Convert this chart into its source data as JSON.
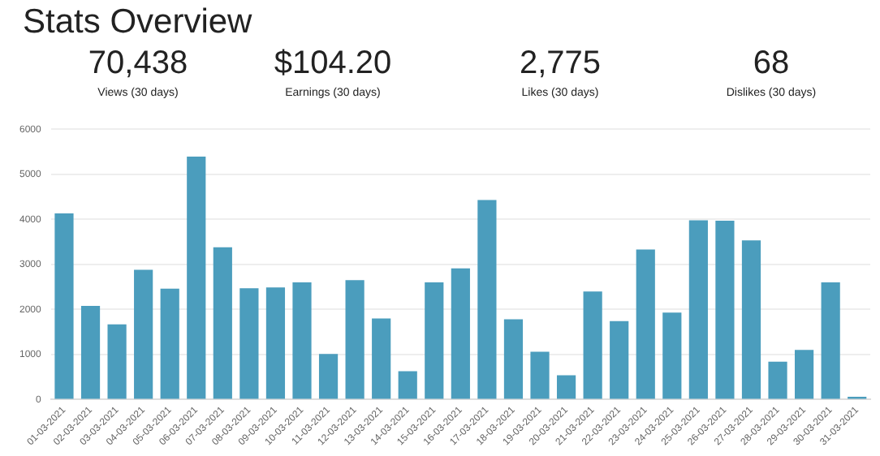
{
  "chart_data": {
    "type": "bar",
    "title": "Stats Overview",
    "annotations": [
      "70,438",
      "Views (30 days)",
      "$104.20",
      "Earnings (30 days)",
      "2,775",
      "Likes (30 days)",
      "68",
      "Dislikes (30 days)"
    ],
    "categories": [
      "01-03-2021",
      "02-03-2021",
      "03-03-2021",
      "04-03-2021",
      "05-03-2021",
      "06-03-2021",
      "07-03-2021",
      "08-03-2021",
      "09-03-2021",
      "10-03-2021",
      "11-03-2021",
      "12-03-2021",
      "13-03-2021",
      "14-03-2021",
      "15-03-2021",
      "16-03-2021",
      "17-03-2021",
      "18-03-2021",
      "19-03-2021",
      "20-03-2021",
      "21-03-2021",
      "22-03-2021",
      "23-03-2021",
      "24-03-2021",
      "25-03-2021",
      "26-03-2021",
      "27-03-2021",
      "28-03-2021",
      "29-03-2021",
      "30-03-2021",
      "31-03-2021"
    ],
    "values": [
      4130,
      2080,
      1670,
      2880,
      2460,
      5390,
      3380,
      2470,
      2490,
      2600,
      1010,
      2650,
      1800,
      630,
      2600,
      2910,
      4430,
      1780,
      1060,
      540,
      2400,
      1740,
      3330,
      1930,
      3980,
      3970,
      3530,
      840,
      1100,
      2600,
      60
    ],
    "color": "#4b9dbd",
    "ylim": [
      0,
      6000
    ],
    "yticks": [
      0,
      1000,
      2000,
      3000,
      4000,
      5000,
      6000
    ],
    "grid": "y",
    "legend": false
  }
}
